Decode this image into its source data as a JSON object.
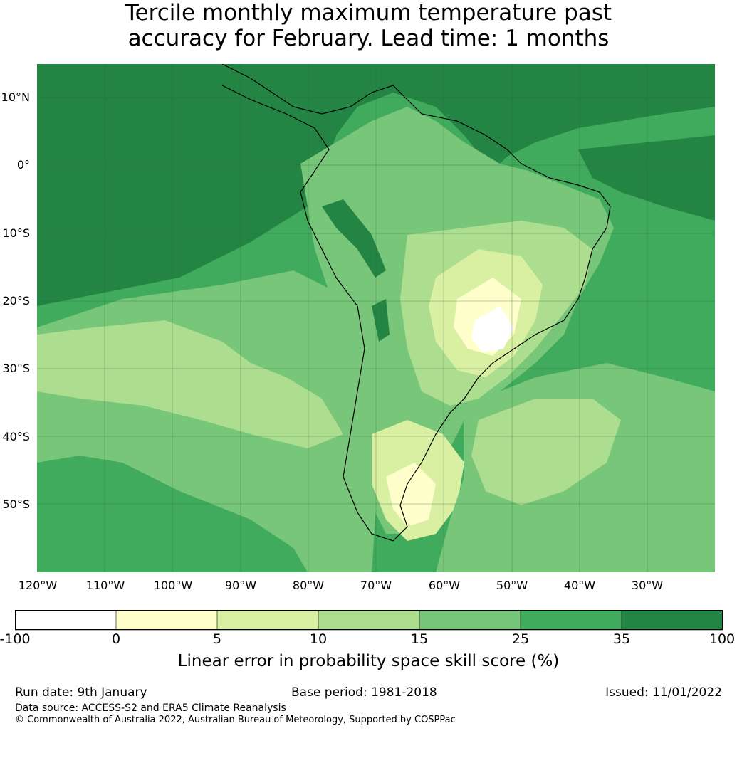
{
  "title": {
    "line1": "Tercile monthly maximum temperature past",
    "line2": "accuracy for February. Lead time: 1 months"
  },
  "map": {
    "region": "South America",
    "latitude_labels": [
      "10°N",
      "0°",
      "10°S",
      "20°S",
      "30°S",
      "40°S",
      "50°S"
    ],
    "longitude_labels": [
      "120°W",
      "110°W",
      "100°W",
      "90°W",
      "80°W",
      "70°W",
      "60°W",
      "50°W",
      "40°W",
      "30°W"
    ]
  },
  "colorbar": {
    "ticks": [
      "-100",
      "0",
      "5",
      "10",
      "15",
      "25",
      "35",
      "100"
    ],
    "colors": [
      "#ffffff",
      "#ffffcc",
      "#d9f0a3",
      "#addd8e",
      "#78c679",
      "#41ab5d",
      "#238443"
    ],
    "label": "Linear error in probability space skill score (%)"
  },
  "footer": {
    "run_date": "Run date: 9th January",
    "base_period": "Base period: 1981-2018",
    "issued": "Issued: 11/01/2022",
    "data_source": "Data source: ACCESS-S2 and ERA5 Climate Reanalysis",
    "copyright": "© Commonwealth of Australia 2022, Australian Bureau of Meteorology, Supported by COSPPac"
  }
}
